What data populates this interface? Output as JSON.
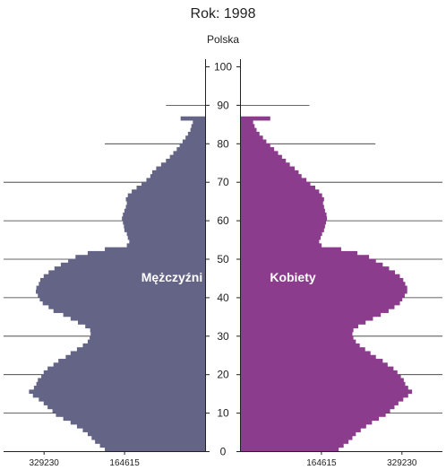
{
  "chart_data": {
    "type": "population_pyramid",
    "title": "Rok: 1998",
    "subtitle": "Polska",
    "y_axis": {
      "ticks": [
        0,
        10,
        20,
        30,
        40,
        50,
        60,
        70,
        80,
        90,
        100
      ],
      "range": [
        0,
        100
      ]
    },
    "x_axis": {
      "tick_labels": [
        "329230",
        "164615",
        "164615",
        "329230"
      ],
      "tick_values": [
        -329230,
        -164615,
        164615,
        329230
      ],
      "range": [
        -412000,
        412000
      ]
    },
    "colors": {
      "male": "#646487",
      "female": "#8c3c8c",
      "grid": "#333333"
    },
    "series": [
      {
        "name": "Mężczyźni",
        "side": "left",
        "ages": [
          0,
          1,
          2,
          3,
          4,
          5,
          6,
          7,
          8,
          9,
          10,
          11,
          12,
          13,
          14,
          15,
          16,
          17,
          18,
          19,
          20,
          21,
          22,
          23,
          24,
          25,
          26,
          27,
          28,
          29,
          30,
          31,
          32,
          33,
          34,
          35,
          36,
          37,
          38,
          39,
          40,
          41,
          42,
          43,
          44,
          45,
          46,
          47,
          48,
          49,
          50,
          51,
          52,
          53,
          54,
          55,
          56,
          57,
          58,
          59,
          60,
          61,
          62,
          63,
          64,
          65,
          66,
          67,
          68,
          69,
          70,
          71,
          72,
          73,
          74,
          75,
          76,
          77,
          78,
          79,
          80,
          81,
          82,
          83,
          84,
          85,
          86
        ],
        "values": [
          205000,
          215000,
          225000,
          232000,
          240000,
          250000,
          262000,
          275000,
          290000,
          305000,
          312000,
          322000,
          330000,
          340000,
          352000,
          360000,
          350000,
          345000,
          342000,
          335000,
          330000,
          322000,
          310000,
          300000,
          285000,
          275000,
          262000,
          250000,
          240000,
          236000,
          234000,
          235000,
          245000,
          260000,
          275000,
          290000,
          310000,
          320000,
          332000,
          338000,
          342000,
          346000,
          345000,
          340000,
          337000,
          330000,
          320000,
          308000,
          295000,
          280000,
          265000,
          240000,
          205000,
          160000,
          155000,
          158000,
          160000,
          165000,
          166000,
          168000,
          170000,
          168000,
          165000,
          162000,
          160000,
          162000,
          158000,
          150000,
          140000,
          130000,
          120000,
          112000,
          108000,
          100000,
          90000,
          80000,
          72000,
          65000,
          58000,
          52000,
          46000,
          40000,
          35000,
          30000,
          28000,
          25000,
          50000
        ]
      },
      {
        "name": "Kobiety",
        "side": "right",
        "ages": [
          0,
          1,
          2,
          3,
          4,
          5,
          6,
          7,
          8,
          9,
          10,
          11,
          12,
          13,
          14,
          15,
          16,
          17,
          18,
          19,
          20,
          21,
          22,
          23,
          24,
          25,
          26,
          27,
          28,
          29,
          30,
          31,
          32,
          33,
          34,
          35,
          36,
          37,
          38,
          39,
          40,
          41,
          42,
          43,
          44,
          45,
          46,
          47,
          48,
          49,
          50,
          51,
          52,
          53,
          54,
          55,
          56,
          57,
          58,
          59,
          60,
          61,
          62,
          63,
          64,
          65,
          66,
          67,
          68,
          69,
          70,
          71,
          72,
          73,
          74,
          75,
          76,
          77,
          78,
          79,
          80,
          81,
          82,
          83,
          84,
          85,
          86
        ],
        "values": [
          200000,
          210000,
          220000,
          228000,
          235000,
          245000,
          256000,
          268000,
          282000,
          296000,
          305000,
          314000,
          322000,
          332000,
          342000,
          350000,
          342000,
          336000,
          333000,
          327000,
          320000,
          312000,
          300000,
          290000,
          276000,
          265000,
          254000,
          243000,
          235000,
          230000,
          228000,
          230000,
          240000,
          255000,
          270000,
          286000,
          302000,
          314000,
          325000,
          330000,
          335000,
          340000,
          340000,
          336000,
          332000,
          325000,
          315000,
          303000,
          290000,
          276000,
          262000,
          238000,
          205000,
          165000,
          160000,
          163000,
          166000,
          170000,
          172000,
          174000,
          176000,
          175000,
          172000,
          170000,
          168000,
          170000,
          166000,
          160000,
          152000,
          142000,
          134000,
          124000,
          118000,
          110000,
          100000,
          92000,
          84000,
          76000,
          68000,
          60000,
          52000,
          45000,
          38000,
          32000,
          28000,
          25000,
          60000
        ]
      }
    ],
    "reference_lines": [
      {
        "side": "left",
        "age": 90,
        "value": 80000
      },
      {
        "side": "right",
        "age": 90,
        "value": 140000
      },
      {
        "side": "left",
        "age": 80,
        "value": 205000
      },
      {
        "side": "right",
        "age": 80,
        "value": 275000
      },
      {
        "side": "both",
        "age": 70,
        "value": 412000
      },
      {
        "side": "both",
        "age": 60,
        "value": 412000
      },
      {
        "side": "both",
        "age": 50,
        "value": 412000
      },
      {
        "side": "both",
        "age": 40,
        "value": 412000
      },
      {
        "side": "both",
        "age": 30,
        "value": 412000
      },
      {
        "side": "both",
        "age": 20,
        "value": 412000
      },
      {
        "side": "both",
        "age": 10,
        "value": 412000
      }
    ]
  }
}
